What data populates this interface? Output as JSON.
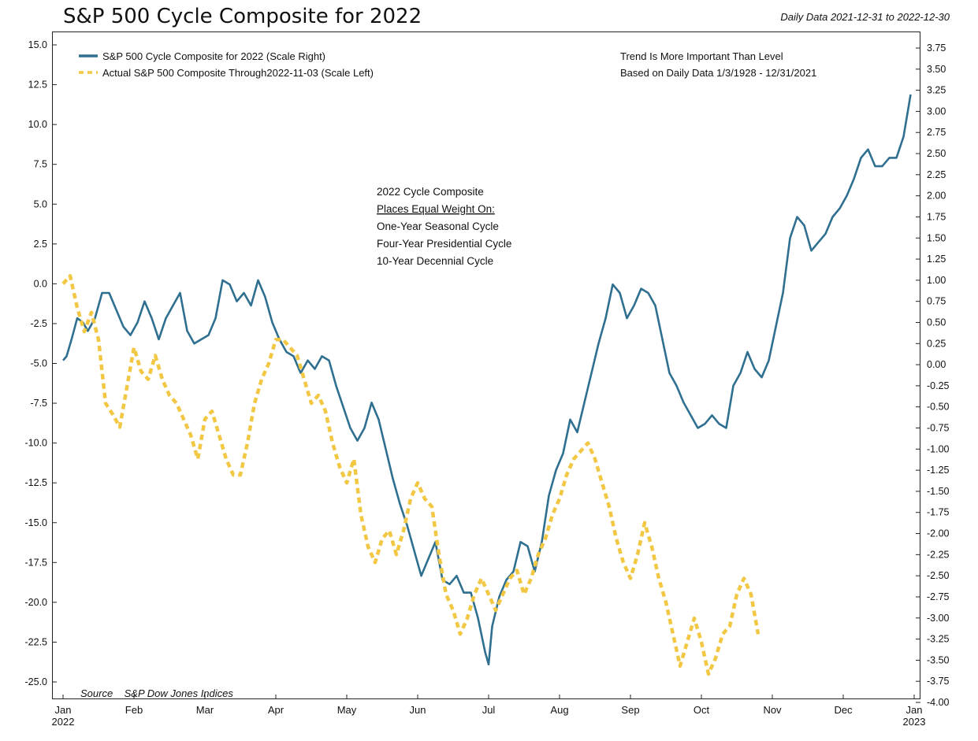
{
  "header": {
    "title": "S&P 500 Cycle Composite for 2022",
    "date_range": "Daily Data 2021-12-31 to 2022-12-30"
  },
  "notes": {
    "top_right_1": "Trend Is More Important Than Level",
    "top_right_2": "Based on Daily Data 1/3/1928 - 12/31/2021",
    "center": [
      "2022 Cycle Composite",
      "Places Equal Weight On:",
      "One-Year Seasonal Cycle",
      "Four-Year Presidential Cycle",
      "10-Year Decennial Cycle"
    ],
    "source": "Source    S&P Dow Jones Indices"
  },
  "colors": {
    "composite": "#2f6f8f",
    "actual": "#f2c744"
  },
  "chart_data": {
    "type": "line",
    "title": "S&P 500 Cycle Composite for 2022",
    "x_months": [
      "Jan 2022",
      "Feb",
      "Mar",
      "Apr",
      "May",
      "Jun",
      "Jul",
      "Aug",
      "Sep",
      "Oct",
      "Nov",
      "Dec",
      "Jan 2023"
    ],
    "x_tick_labels": [
      [
        "Jan",
        "2022"
      ],
      [
        "Feb"
      ],
      [
        "Mar"
      ],
      [
        "Apr"
      ],
      [
        "May"
      ],
      [
        "Jun"
      ],
      [
        "Jul"
      ],
      [
        "Aug"
      ],
      [
        "Sep"
      ],
      [
        "Oct"
      ],
      [
        "Nov"
      ],
      [
        "Dec"
      ],
      [
        "Jan",
        "2023"
      ]
    ],
    "y_left": {
      "min": -25,
      "max": 15,
      "ticks": [
        "15.0",
        "12.5",
        "10.0",
        "7.5",
        "5.0",
        "2.5",
        "0.0",
        "-2.5",
        "-5.0",
        "-7.5",
        "-10.0",
        "-12.5",
        "-15.0",
        "-17.5",
        "-20.0",
        "-22.5",
        "-25.0"
      ]
    },
    "y_right": {
      "min": -4,
      "max": 3.75,
      "ticks": [
        "3.75",
        "3.50",
        "3.25",
        "3.00",
        "2.75",
        "2.50",
        "2.25",
        "2.00",
        "1.75",
        "1.50",
        "1.25",
        "1.00",
        "0.75",
        "0.50",
        "0.25",
        "0.00",
        "-0.25",
        "-0.50",
        "-0.75",
        "-1.00",
        "-1.25",
        "-1.50",
        "-1.75",
        "-2.00",
        "-2.25",
        "-2.50",
        "-2.75",
        "-3.00",
        "-3.25",
        "-3.50",
        "-3.75",
        "-4.00"
      ]
    },
    "series": [
      {
        "name": "S&P 500 Cycle Composite for 2022 (Scale Right)",
        "axis": "right",
        "style": "solid",
        "points": [
          [
            0.0,
            0.05
          ],
          [
            0.05,
            0.1
          ],
          [
            0.12,
            0.3
          ],
          [
            0.2,
            0.55
          ],
          [
            0.28,
            0.5
          ],
          [
            0.35,
            0.4
          ],
          [
            0.45,
            0.55
          ],
          [
            0.55,
            0.85
          ],
          [
            0.65,
            0.85
          ],
          [
            0.75,
            0.65
          ],
          [
            0.85,
            0.45
          ],
          [
            0.95,
            0.35
          ],
          [
            1.05,
            0.5
          ],
          [
            1.15,
            0.75
          ],
          [
            1.25,
            0.55
          ],
          [
            1.35,
            0.3
          ],
          [
            1.45,
            0.55
          ],
          [
            1.55,
            0.7
          ],
          [
            1.65,
            0.85
          ],
          [
            1.75,
            0.4
          ],
          [
            1.85,
            0.25
          ],
          [
            1.95,
            0.3
          ],
          [
            2.05,
            0.35
          ],
          [
            2.15,
            0.55
          ],
          [
            2.25,
            1.0
          ],
          [
            2.35,
            0.95
          ],
          [
            2.45,
            0.75
          ],
          [
            2.55,
            0.85
          ],
          [
            2.65,
            0.7
          ],
          [
            2.75,
            1.0
          ],
          [
            2.85,
            0.8
          ],
          [
            2.95,
            0.5
          ],
          [
            3.05,
            0.3
          ],
          [
            3.15,
            0.15
          ],
          [
            3.25,
            0.1
          ],
          [
            3.35,
            -0.1
          ],
          [
            3.45,
            0.05
          ],
          [
            3.55,
            -0.05
          ],
          [
            3.65,
            0.1
          ],
          [
            3.75,
            0.05
          ],
          [
            3.85,
            -0.25
          ],
          [
            3.95,
            -0.5
          ],
          [
            4.05,
            -0.75
          ],
          [
            4.15,
            -0.9
          ],
          [
            4.25,
            -0.75
          ],
          [
            4.35,
            -0.45
          ],
          [
            4.45,
            -0.65
          ],
          [
            4.55,
            -1.0
          ],
          [
            4.65,
            -1.35
          ],
          [
            4.75,
            -1.65
          ],
          [
            4.85,
            -1.9
          ],
          [
            4.95,
            -2.2
          ],
          [
            5.05,
            -2.5
          ],
          [
            5.15,
            -2.3
          ],
          [
            5.25,
            -2.1
          ],
          [
            5.35,
            -2.55
          ],
          [
            5.45,
            -2.6
          ],
          [
            5.55,
            -2.5
          ],
          [
            5.65,
            -2.7
          ],
          [
            5.75,
            -2.7
          ],
          [
            5.85,
            -3.0
          ],
          [
            5.95,
            -3.4
          ],
          [
            6.0,
            -3.55
          ],
          [
            6.05,
            -3.1
          ],
          [
            6.15,
            -2.75
          ],
          [
            6.25,
            -2.55
          ],
          [
            6.35,
            -2.45
          ],
          [
            6.45,
            -2.1
          ],
          [
            6.55,
            -2.15
          ],
          [
            6.65,
            -2.45
          ],
          [
            6.75,
            -2.1
          ],
          [
            6.85,
            -1.55
          ],
          [
            6.95,
            -1.25
          ],
          [
            7.05,
            -1.05
          ],
          [
            7.15,
            -0.65
          ],
          [
            7.25,
            -0.8
          ],
          [
            7.35,
            -0.45
          ],
          [
            7.45,
            -0.1
          ],
          [
            7.55,
            0.25
          ],
          [
            7.65,
            0.55
          ],
          [
            7.75,
            0.95
          ],
          [
            7.85,
            0.85
          ],
          [
            7.95,
            0.55
          ],
          [
            8.05,
            0.7
          ],
          [
            8.15,
            0.9
          ],
          [
            8.25,
            0.85
          ],
          [
            8.35,
            0.7
          ],
          [
            8.45,
            0.3
          ],
          [
            8.55,
            -0.1
          ],
          [
            8.65,
            -0.25
          ],
          [
            8.75,
            -0.45
          ],
          [
            8.85,
            -0.6
          ],
          [
            8.95,
            -0.75
          ],
          [
            9.05,
            -0.7
          ],
          [
            9.15,
            -0.6
          ],
          [
            9.25,
            -0.7
          ],
          [
            9.35,
            -0.75
          ],
          [
            9.45,
            -0.25
          ],
          [
            9.55,
            -0.1
          ],
          [
            9.65,
            0.15
          ],
          [
            9.75,
            -0.05
          ],
          [
            9.85,
            -0.15
          ],
          [
            9.95,
            0.05
          ],
          [
            10.05,
            0.45
          ],
          [
            10.15,
            0.85
          ],
          [
            10.25,
            1.5
          ],
          [
            10.35,
            1.75
          ],
          [
            10.45,
            1.65
          ],
          [
            10.55,
            1.35
          ],
          [
            10.65,
            1.45
          ],
          [
            10.75,
            1.55
          ],
          [
            10.85,
            1.75
          ],
          [
            10.95,
            1.85
          ],
          [
            11.05,
            2.0
          ],
          [
            11.15,
            2.2
          ],
          [
            11.25,
            2.45
          ],
          [
            11.35,
            2.55
          ],
          [
            11.45,
            2.35
          ],
          [
            11.55,
            2.35
          ],
          [
            11.65,
            2.45
          ],
          [
            11.75,
            2.45
          ],
          [
            11.85,
            2.7
          ],
          [
            11.95,
            3.2
          ]
        ]
      },
      {
        "name": "Actual S&P 500 Composite Through2022-11-03 (Scale Left)",
        "axis": "left",
        "style": "dashed",
        "points": [
          [
            0.0,
            0.0
          ],
          [
            0.1,
            0.5
          ],
          [
            0.2,
            -1.5
          ],
          [
            0.3,
            -3.0
          ],
          [
            0.4,
            -1.8
          ],
          [
            0.5,
            -3.5
          ],
          [
            0.6,
            -7.5
          ],
          [
            0.7,
            -8.2
          ],
          [
            0.8,
            -9.0
          ],
          [
            0.9,
            -6.5
          ],
          [
            1.0,
            -4.0
          ],
          [
            1.1,
            -5.5
          ],
          [
            1.2,
            -6.0
          ],
          [
            1.3,
            -4.5
          ],
          [
            1.4,
            -6.0
          ],
          [
            1.5,
            -7.0
          ],
          [
            1.6,
            -7.5
          ],
          [
            1.7,
            -8.5
          ],
          [
            1.8,
            -9.5
          ],
          [
            1.9,
            -11.0
          ],
          [
            2.0,
            -8.5
          ],
          [
            2.1,
            -8.0
          ],
          [
            2.2,
            -9.5
          ],
          [
            2.3,
            -11.0
          ],
          [
            2.4,
            -12.0
          ],
          [
            2.5,
            -12.0
          ],
          [
            2.6,
            -10.0
          ],
          [
            2.7,
            -7.5
          ],
          [
            2.8,
            -6.0
          ],
          [
            2.9,
            -5.0
          ],
          [
            3.0,
            -3.5
          ],
          [
            3.1,
            -3.5
          ],
          [
            3.2,
            -4.0
          ],
          [
            3.3,
            -4.5
          ],
          [
            3.4,
            -6.0
          ],
          [
            3.5,
            -7.5
          ],
          [
            3.6,
            -7.0
          ],
          [
            3.7,
            -8.0
          ],
          [
            3.8,
            -10.0
          ],
          [
            3.9,
            -11.5
          ],
          [
            4.0,
            -12.5
          ],
          [
            4.1,
            -11.0
          ],
          [
            4.2,
            -14.5
          ],
          [
            4.3,
            -16.5
          ],
          [
            4.4,
            -17.5
          ],
          [
            4.5,
            -16.0
          ],
          [
            4.6,
            -15.5
          ],
          [
            4.7,
            -17.0
          ],
          [
            4.8,
            -15.5
          ],
          [
            4.9,
            -13.5
          ],
          [
            5.0,
            -12.5
          ],
          [
            5.1,
            -13.5
          ],
          [
            5.2,
            -14.0
          ],
          [
            5.3,
            -17.0
          ],
          [
            5.4,
            -19.5
          ],
          [
            5.5,
            -20.5
          ],
          [
            5.6,
            -22.0
          ],
          [
            5.7,
            -21.0
          ],
          [
            5.8,
            -19.5
          ],
          [
            5.9,
            -18.5
          ],
          [
            6.0,
            -19.5
          ],
          [
            6.1,
            -20.5
          ],
          [
            6.2,
            -19.5
          ],
          [
            6.3,
            -18.5
          ],
          [
            6.4,
            -18.0
          ],
          [
            6.5,
            -19.5
          ],
          [
            6.6,
            -18.5
          ],
          [
            6.7,
            -17.0
          ],
          [
            6.8,
            -16.0
          ],
          [
            6.9,
            -14.5
          ],
          [
            7.0,
            -13.5
          ],
          [
            7.1,
            -12.0
          ],
          [
            7.2,
            -11.0
          ],
          [
            7.3,
            -10.5
          ],
          [
            7.4,
            -10.0
          ],
          [
            7.5,
            -11.0
          ],
          [
            7.6,
            -12.5
          ],
          [
            7.7,
            -14.0
          ],
          [
            7.8,
            -16.0
          ],
          [
            7.9,
            -17.5
          ],
          [
            8.0,
            -18.5
          ],
          [
            8.1,
            -17.0
          ],
          [
            8.2,
            -15.0
          ],
          [
            8.3,
            -16.5
          ],
          [
            8.4,
            -18.5
          ],
          [
            8.5,
            -20.0
          ],
          [
            8.6,
            -22.0
          ],
          [
            8.7,
            -24.0
          ],
          [
            8.8,
            -22.5
          ],
          [
            8.9,
            -21.0
          ],
          [
            9.0,
            -22.5
          ],
          [
            9.1,
            -24.5
          ],
          [
            9.2,
            -23.5
          ],
          [
            9.3,
            -22.0
          ],
          [
            9.4,
            -21.5
          ],
          [
            9.5,
            -19.5
          ],
          [
            9.6,
            -18.5
          ],
          [
            9.7,
            -19.5
          ],
          [
            9.8,
            -22.0
          ]
        ]
      }
    ]
  }
}
